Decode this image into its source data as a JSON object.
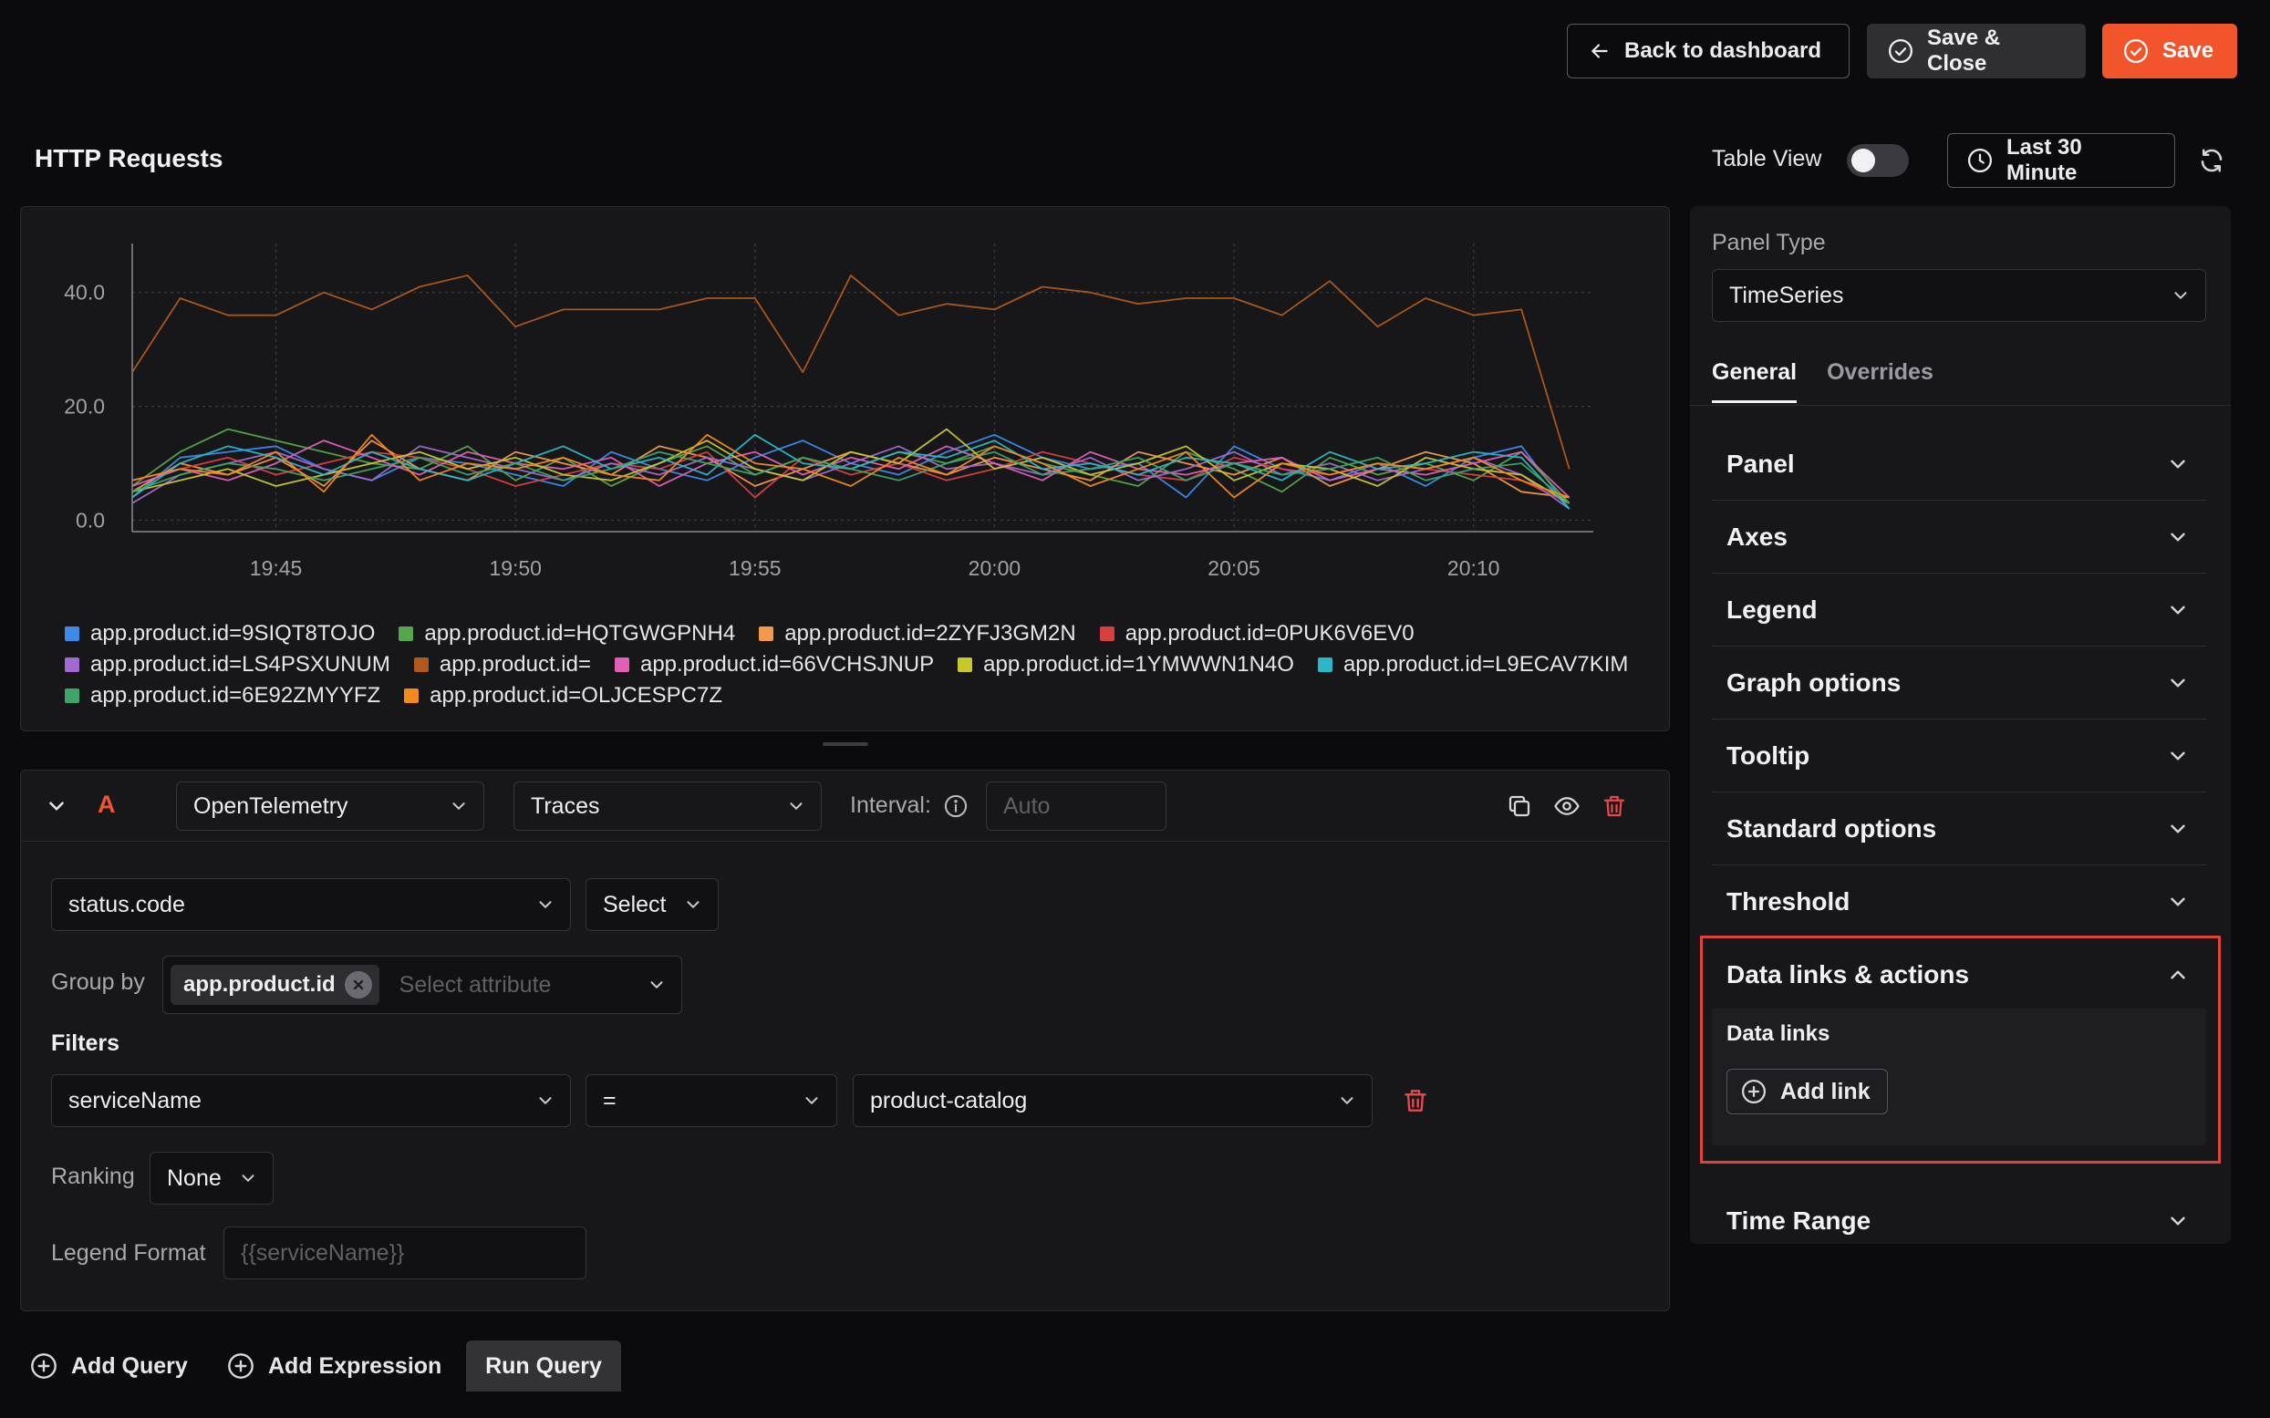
{
  "header": {
    "back_label": "Back to dashboard",
    "save_close_label": "Save & Close",
    "save_label": "Save"
  },
  "panel": {
    "title": "HTTP Requests",
    "table_view_label": "Table View",
    "table_view_on": false,
    "time_range_label": "Last 30 Minute"
  },
  "chart_data": {
    "type": "line",
    "title": "",
    "xlabel": "",
    "ylabel": "",
    "x_ticks": [
      "19:45",
      "19:50",
      "19:55",
      "20:00",
      "20:05",
      "20:10"
    ],
    "y_ticks": [
      "0.0",
      "20.0",
      "40.0"
    ],
    "ylim": [
      -2,
      47
    ],
    "xlim": [
      "19:42",
      "20:12:30"
    ],
    "grid": true,
    "legend_position": "bottom",
    "x_minutes": [
      0,
      1,
      2,
      3,
      4,
      5,
      6,
      7,
      8,
      9,
      10,
      11,
      12,
      13,
      14,
      15,
      16,
      17,
      18,
      19,
      20,
      21,
      22,
      23,
      24,
      25,
      26,
      27,
      28,
      29,
      30
    ],
    "x_labels_hhmm": [
      "19:42",
      "19:43",
      "19:44",
      "19:45",
      "19:46",
      "19:47",
      "19:48",
      "19:49",
      "19:50",
      "19:51",
      "19:52",
      "19:53",
      "19:54",
      "19:55",
      "19:56",
      "19:57",
      "19:58",
      "19:59",
      "20:00",
      "20:01",
      "20:02",
      "20:03",
      "20:04",
      "20:05",
      "20:06",
      "20:07",
      "20:08",
      "20:09",
      "20:10",
      "20:11",
      "20:12"
    ],
    "series": [
      {
        "name": "app.product.id=9SIQT8TOJO",
        "color": "#3b8beb",
        "values": [
          4,
          11,
          12,
          13,
          9,
          7,
          11,
          10,
          8,
          6,
          12,
          9,
          7,
          11,
          14,
          10,
          8,
          12,
          15,
          11,
          9,
          10,
          4,
          13,
          9,
          7,
          10,
          6,
          11,
          13,
          2
        ]
      },
      {
        "name": "app.product.id=HQTGWGPNH4",
        "color": "#56a64b",
        "values": [
          6,
          12,
          16,
          14,
          12,
          10,
          9,
          13,
          7,
          11,
          6,
          10,
          13,
          8,
          11,
          9,
          12,
          10,
          13,
          10,
          8,
          6,
          12,
          9,
          5,
          11,
          8,
          10,
          7,
          12,
          3
        ]
      },
      {
        "name": "app.product.id=2ZYFJ3GM2N",
        "color": "#f2994a",
        "values": [
          5,
          10,
          8,
          11,
          6,
          14,
          9,
          7,
          12,
          10,
          8,
          13,
          11,
          6,
          9,
          12,
          10,
          8,
          11,
          9,
          7,
          12,
          10,
          8,
          11,
          6,
          9,
          12,
          10,
          5,
          4
        ]
      },
      {
        "name": "app.product.id=0PUK6V6EV0",
        "color": "#d84040",
        "values": [
          7,
          9,
          11,
          8,
          10,
          12,
          11,
          9,
          6,
          8,
          10,
          9,
          12,
          4,
          11,
          8,
          10,
          7,
          9,
          12,
          10,
          8,
          7,
          11,
          9,
          8,
          10,
          9,
          8,
          7,
          3
        ]
      },
      {
        "name": "app.product.id=LS4PSXUNUM",
        "color": "#a06ad1",
        "values": [
          3,
          8,
          10,
          12,
          9,
          7,
          13,
          11,
          9,
          7,
          10,
          8,
          11,
          9,
          7,
          10,
          13,
          9,
          10,
          8,
          11,
          7,
          9,
          12,
          8,
          10,
          7,
          9,
          11,
          8,
          2
        ]
      },
      {
        "name": "app.product.id=",
        "color": "#b05a1e",
        "values": [
          26,
          39,
          36,
          36,
          40,
          37,
          41,
          43,
          34,
          37,
          37,
          37,
          39,
          39,
          26,
          43,
          36,
          38,
          37,
          41,
          40,
          38,
          39,
          39,
          36,
          42,
          34,
          39,
          36,
          37,
          9
        ]
      },
      {
        "name": "app.product.id=66VCHSJNUP",
        "color": "#e060b8",
        "values": [
          6,
          9,
          7,
          10,
          14,
          11,
          8,
          12,
          10,
          9,
          11,
          6,
          10,
          12,
          8,
          11,
          9,
          13,
          10,
          7,
          12,
          9,
          8,
          10,
          11,
          7,
          9,
          8,
          10,
          12,
          4
        ]
      },
      {
        "name": "app.product.id=1YMWWN1N4O",
        "color": "#c8c82a",
        "values": [
          5,
          7,
          9,
          6,
          8,
          10,
          12,
          9,
          11,
          8,
          7,
          10,
          14,
          9,
          7,
          12,
          10,
          16,
          9,
          11,
          8,
          10,
          13,
          7,
          10,
          9,
          6,
          11,
          9,
          8,
          3
        ]
      },
      {
        "name": "app.product.id=L9ECAV7KIM",
        "color": "#2ab8c8",
        "values": [
          4,
          10,
          13,
          11,
          8,
          12,
          9,
          7,
          10,
          13,
          9,
          11,
          8,
          15,
          10,
          9,
          12,
          11,
          14,
          9,
          10,
          8,
          11,
          10,
          7,
          12,
          9,
          10,
          12,
          11,
          2
        ]
      },
      {
        "name": "app.product.id=6E92ZMYYFZ",
        "color": "#3aa66a",
        "values": [
          5,
          8,
          10,
          9,
          7,
          9,
          11,
          8,
          10,
          7,
          9,
          12,
          10,
          8,
          11,
          9,
          7,
          10,
          12,
          8,
          9,
          11,
          7,
          10,
          8,
          9,
          11,
          7,
          9,
          10,
          3
        ]
      },
      {
        "name": "app.product.id=OLJCESPC7Z",
        "color": "#f28a1e",
        "values": [
          7,
          9,
          8,
          12,
          5,
          15,
          7,
          10,
          9,
          11,
          8,
          7,
          15,
          10,
          9,
          6,
          11,
          8,
          13,
          10,
          6,
          9,
          12,
          4,
          10,
          8,
          10,
          9,
          11,
          7,
          4
        ]
      }
    ]
  },
  "query": {
    "letter": "A",
    "datasource": "OpenTelemetry",
    "signal": "Traces",
    "interval_label": "Interval:",
    "interval_placeholder": "Auto",
    "metric": "status.code",
    "aggregation": "Select",
    "group_by_label": "Group by",
    "group_by_chip": "app.product.id",
    "group_by_placeholder": "Select attribute",
    "filters_label": "Filters",
    "filter_field": "serviceName",
    "filter_operator": "=",
    "filter_value": "product-catalog",
    "ranking_label": "Ranking",
    "ranking_value": "None",
    "legend_format_label": "Legend Format",
    "legend_format_placeholder": "{{serviceName}}"
  },
  "actions": {
    "add_query": "Add Query",
    "add_expression": "Add Expression",
    "run_query": "Run Query"
  },
  "settings": {
    "panel_type_label": "Panel Type",
    "panel_type_value": "TimeSeries",
    "tabs": [
      "General",
      "Overrides"
    ],
    "active_tab": "General",
    "sections": [
      "Panel",
      "Axes",
      "Legend",
      "Graph options",
      "Tooltip",
      "Standard options",
      "Threshold",
      "Data links & actions",
      "Time Range"
    ],
    "expanded_section": "Data links & actions",
    "data_links_heading": "Data links",
    "add_link_label": "Add link",
    "highlight_color": "#e0413a"
  },
  "colors": {
    "accent": "#f2552b",
    "background": "#0b0b0d",
    "panel": "#17171a",
    "delete": "#e5484d"
  }
}
